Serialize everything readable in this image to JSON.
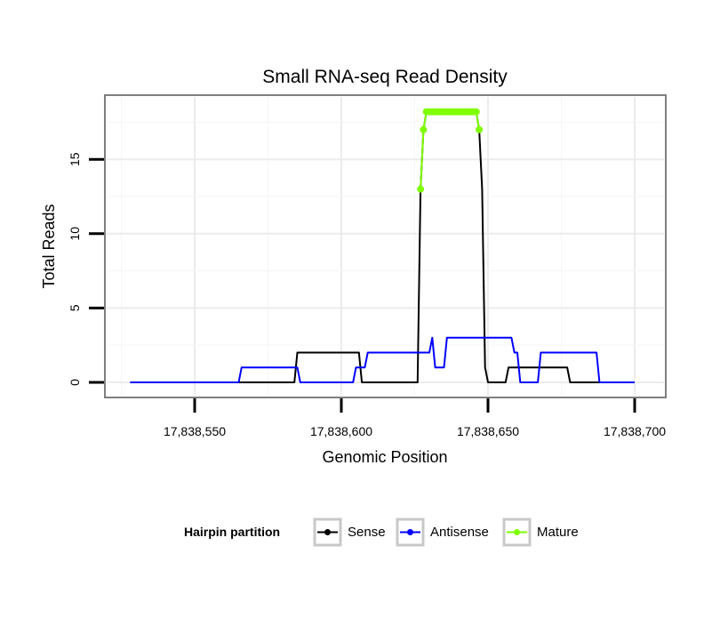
{
  "chart_data": {
    "type": "line",
    "title": "Small RNA-seq Read Density",
    "xlabel": "Genomic Position",
    "ylabel": "Total Reads",
    "xlim": [
      17838520,
      17838710
    ],
    "ylim": [
      -0.9,
      19.2
    ],
    "x_ticks": [
      17838550,
      17838600,
      17838650,
      17838700
    ],
    "x_tick_labels": [
      "17,838,550",
      "17,838,600",
      "17,838,650",
      "17,838,700"
    ],
    "y_ticks": [
      0,
      5,
      10,
      15
    ],
    "y_tick_labels": [
      "0",
      "5",
      "10",
      "15"
    ],
    "grid": true,
    "legend": {
      "title": "Hairpin partition",
      "position": "bottom",
      "entries": [
        "Sense",
        "Antisense",
        "Mature"
      ]
    },
    "series": [
      {
        "name": "Sense",
        "color": "#000000",
        "points": [
          [
            17838528,
            0
          ],
          [
            17838584,
            0
          ],
          [
            17838585,
            2
          ],
          [
            17838606,
            2
          ],
          [
            17838607,
            0
          ],
          [
            17838626,
            0
          ],
          [
            17838627,
            13
          ],
          [
            17838628,
            17
          ],
          [
            17838629,
            18.2
          ],
          [
            17838646,
            18.2
          ],
          [
            17838647,
            17
          ],
          [
            17838648,
            13
          ],
          [
            17838649,
            1
          ],
          [
            17838650,
            0
          ],
          [
            17838656,
            0
          ],
          [
            17838657,
            1
          ],
          [
            17838677,
            1
          ],
          [
            17838678,
            0
          ],
          [
            17838700,
            0
          ]
        ]
      },
      {
        "name": "Antisense",
        "color": "#0000ff",
        "points": [
          [
            17838528,
            0
          ],
          [
            17838565,
            0
          ],
          [
            17838566,
            1
          ],
          [
            17838585,
            1
          ],
          [
            17838586,
            0
          ],
          [
            17838604,
            0
          ],
          [
            17838605,
            1
          ],
          [
            17838608,
            1
          ],
          [
            17838609,
            2
          ],
          [
            17838630,
            2
          ],
          [
            17838631,
            3
          ],
          [
            17838632,
            1
          ],
          [
            17838635,
            1
          ],
          [
            17838636,
            3
          ],
          [
            17838658,
            3
          ],
          [
            17838659,
            2
          ],
          [
            17838660,
            2
          ],
          [
            17838661,
            0
          ],
          [
            17838667,
            0
          ],
          [
            17838668,
            2
          ],
          [
            17838687,
            2
          ],
          [
            17838688,
            0
          ],
          [
            17838700,
            0
          ]
        ]
      },
      {
        "name": "Mature",
        "color": "#7fff00",
        "points": [
          [
            17838627,
            13
          ],
          [
            17838628,
            17
          ],
          [
            17838629,
            18.2
          ],
          [
            17838630,
            18.2
          ],
          [
            17838631,
            18.2
          ],
          [
            17838632,
            18.2
          ],
          [
            17838633,
            18.2
          ],
          [
            17838634,
            18.2
          ],
          [
            17838635,
            18.2
          ],
          [
            17838636,
            18.2
          ],
          [
            17838637,
            18.2
          ],
          [
            17838638,
            18.2
          ],
          [
            17838639,
            18.2
          ],
          [
            17838640,
            18.2
          ],
          [
            17838641,
            18.2
          ],
          [
            17838642,
            18.2
          ],
          [
            17838643,
            18.2
          ],
          [
            17838644,
            18.2
          ],
          [
            17838645,
            18.2
          ],
          [
            17838646,
            18.2
          ],
          [
            17838647,
            17
          ]
        ]
      }
    ]
  }
}
